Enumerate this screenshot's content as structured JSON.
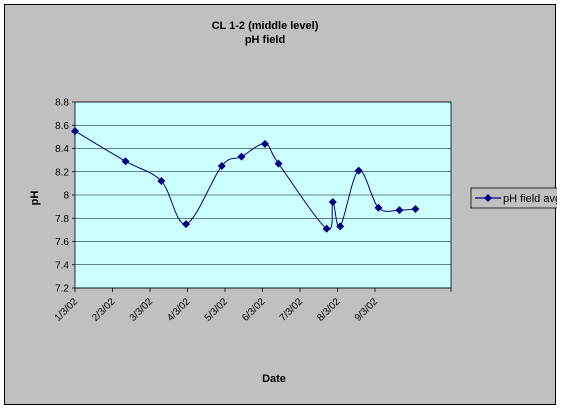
{
  "chart_data": {
    "type": "line",
    "title": "CL 1-2 (middle level)",
    "subtitle": "pH field",
    "xlabel": "Date",
    "ylabel": "pH",
    "ylim": [
      7.2,
      8.8
    ],
    "y_ticks": [
      "7.2",
      "7.4",
      "7.6",
      "7.8",
      "8",
      "8.2",
      "8.4",
      "8.6",
      "8.8"
    ],
    "x_ticks": [
      "1/3/02",
      "2/3/02",
      "3/3/02",
      "4/3/02",
      "5/3/02",
      "6/3/02",
      "7/3/02",
      "8/3/02",
      "9/3/02"
    ],
    "grid": true,
    "legend_position": "right",
    "colors": {
      "plot_background": "#ccffff",
      "outer_background": "#c0c0c0",
      "series": "#000080"
    },
    "series": [
      {
        "name": "pH field avg",
        "x": [
          "2002-01-03",
          "2002-02-13",
          "2002-03-14",
          "2002-04-03",
          "2002-05-02",
          "2002-05-18",
          "2002-06-06",
          "2002-06-17",
          "2002-07-26",
          "2002-07-31",
          "2002-08-06",
          "2002-08-21",
          "2002-09-06",
          "2002-09-23",
          "2002-10-06"
        ],
        "values": [
          8.55,
          8.29,
          8.12,
          7.75,
          8.25,
          8.33,
          8.44,
          8.27,
          7.71,
          7.94,
          7.73,
          8.21,
          7.89,
          7.87,
          7.88
        ]
      }
    ]
  }
}
